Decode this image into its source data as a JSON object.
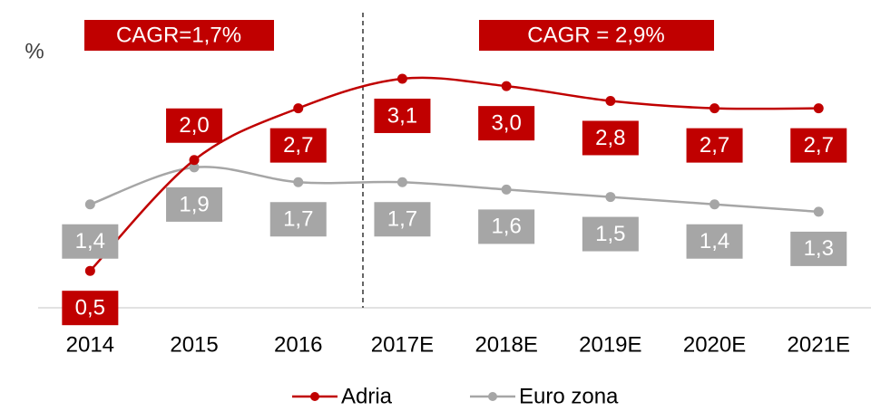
{
  "chart_data": {
    "type": "line",
    "y_label": "%",
    "annotations": [
      "CAGR=1,7%",
      "CAGR = 2,9%"
    ],
    "categories": [
      "2014",
      "2015",
      "2016",
      "2017E",
      "2018E",
      "2019E",
      "2020E",
      "2021E"
    ],
    "ylim": [
      0,
      3.7
    ],
    "series": [
      {
        "name": "Adria",
        "color": "#c00000",
        "values": [
          0.5,
          2.0,
          2.7,
          3.1,
          3.0,
          2.8,
          2.7,
          2.7
        ],
        "value_labels": [
          "0,5",
          "2,0",
          "2,7",
          "3,1",
          "3,0",
          "2,8",
          "2,7",
          "2,7"
        ]
      },
      {
        "name": "Euro zona",
        "color": "#a6a6a6",
        "values": [
          1.4,
          1.9,
          1.7,
          1.7,
          1.6,
          1.5,
          1.4,
          1.3
        ],
        "value_labels": [
          "1,4",
          "1,9",
          "1,7",
          "1,7",
          "1,6",
          "1,5",
          "1,4",
          "1,3"
        ]
      }
    ],
    "legend": "bottom"
  }
}
